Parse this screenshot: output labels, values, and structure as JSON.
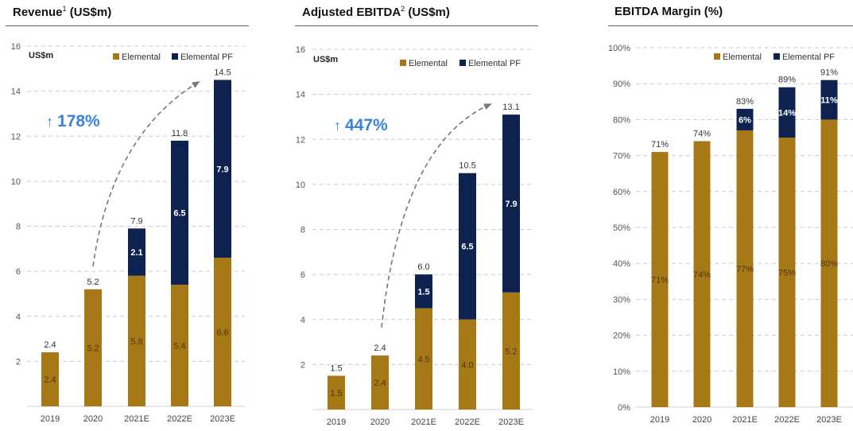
{
  "colors": {
    "elemental": "#A67816",
    "elemental_pf": "#0E2250",
    "growth": "#3B82DC",
    "grid": "#CCCCCC",
    "arrow": "#777777"
  },
  "chart_data": [
    {
      "type": "bar",
      "stacked": true,
      "title": "Revenue",
      "title_sup": "1",
      "title_suffix": " (US$m)",
      "unit_label": "US$m",
      "categories": [
        "2019",
        "2020",
        "2021E",
        "2022E",
        "2023E"
      ],
      "series": [
        {
          "name": "Elemental",
          "values": [
            2.4,
            5.2,
            5.8,
            5.4,
            6.6
          ],
          "labels": [
            "2.4",
            "5.2",
            "5.8",
            "5.4",
            "6.6"
          ]
        },
        {
          "name": "Elemental PF",
          "values": [
            0,
            0,
            2.1,
            6.5,
            7.9
          ],
          "labels": [
            "",
            "",
            "2.1",
            "6.5",
            "7.9"
          ]
        }
      ],
      "totals": [
        "2.4",
        "5.2",
        "7.9",
        "11.8",
        "14.5"
      ],
      "total_values": [
        2.4,
        5.2,
        7.9,
        11.8,
        14.5
      ],
      "yticks": [
        "2",
        "4",
        "6",
        "8",
        "10",
        "12",
        "14",
        "16"
      ],
      "ylim": [
        0,
        16
      ],
      "grid": true,
      "legend": "top-right",
      "annotation": {
        "text": "178%",
        "arrow_glyph": "↑",
        "from": "2020",
        "to": "2023E"
      }
    },
    {
      "type": "bar",
      "stacked": true,
      "title": "Adjusted EBITDA",
      "title_sup": "2",
      "title_suffix": " (US$m)",
      "unit_label": "US$m",
      "categories": [
        "2019",
        "2020",
        "2021E",
        "2022E",
        "2023E"
      ],
      "series": [
        {
          "name": "Elemental",
          "values": [
            1.5,
            2.4,
            4.5,
            4.0,
            5.2
          ],
          "labels": [
            "1.5",
            "2.4",
            "4.5",
            "4.0",
            "5.2"
          ]
        },
        {
          "name": "Elemental PF",
          "values": [
            0,
            0,
            1.5,
            6.5,
            7.9
          ],
          "labels": [
            "",
            "",
            "1.5",
            "6.5",
            "7.9"
          ]
        }
      ],
      "totals": [
        "1.5",
        "2.4",
        "6.0",
        "10.5",
        "13.1"
      ],
      "total_values": [
        1.5,
        2.4,
        6.0,
        10.5,
        13.1
      ],
      "yticks": [
        "2",
        "4",
        "6",
        "8",
        "10",
        "12",
        "14",
        "16"
      ],
      "ylim": [
        0,
        16
      ],
      "grid": true,
      "legend": "top-right",
      "annotation": {
        "text": "447%",
        "arrow_glyph": "↑",
        "from": "2020",
        "to": "2023E"
      }
    },
    {
      "type": "bar",
      "stacked": true,
      "title": "EBITDA Margin (%)",
      "title_sup": "",
      "title_suffix": "",
      "unit_label": "",
      "categories": [
        "2019",
        "2020",
        "2021E",
        "2022E",
        "2023E"
      ],
      "series": [
        {
          "name": "Elemental",
          "values": [
            71,
            74,
            77,
            75,
            80
          ],
          "labels": [
            "71%",
            "74%",
            "77%",
            "75%",
            "80%"
          ]
        },
        {
          "name": "Elemental PF",
          "values": [
            0,
            0,
            6,
            14,
            11
          ],
          "labels": [
            "",
            "",
            "6%",
            "14%",
            "11%"
          ]
        }
      ],
      "totals": [
        "71%",
        "74%",
        "83%",
        "89%",
        "91%"
      ],
      "total_values": [
        71,
        74,
        83,
        89,
        91
      ],
      "yticks": [
        "0%",
        "10%",
        "20%",
        "30%",
        "40%",
        "50%",
        "60%",
        "70%",
        "80%",
        "90%",
        "100%"
      ],
      "ylim": [
        0,
        100
      ],
      "grid": true,
      "legend": "top-right",
      "annotation": null
    }
  ]
}
